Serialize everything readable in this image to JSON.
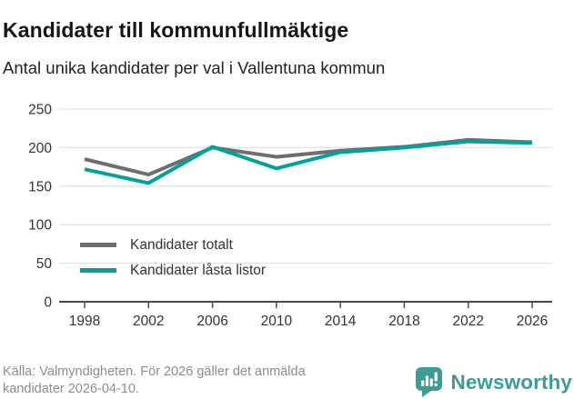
{
  "header": {
    "title": "Kandidater till kommunfullmäktige",
    "subtitle": "Antal unika kandidater per val i Vallentuna kommun"
  },
  "legend": [
    {
      "label": "Kandidater totalt",
      "color": "#6e6e6e"
    },
    {
      "label": "Kandidater låsta listor",
      "color": "#00a29a"
    }
  ],
  "footer": {
    "source": "Källa: Valmyndigheten. För 2026 gäller det anmälda kandidater 2026-04-10.",
    "brand": "Newsworthy",
    "brand_color": "#3d9c96"
  },
  "colors": {
    "grid": "#e3e3e3",
    "axis": "#4a4a4a",
    "tick_label": "#333333",
    "footer_text": "#8d8d8d"
  },
  "chart_data": {
    "type": "line",
    "title": "Kandidater till kommunfullmäktige",
    "subtitle": "Antal unika kandidater per val i Vallentuna kommun",
    "categories": [
      1998,
      2002,
      2006,
      2010,
      2014,
      2018,
      2022,
      2026
    ],
    "series": [
      {
        "name": "Kandidater totalt",
        "color": "#6e6e6e",
        "values": [
          185,
          165,
          200,
          188,
          196,
          201,
          210,
          207
        ]
      },
      {
        "name": "Kandidater låsta listor",
        "color": "#00a29a",
        "values": [
          172,
          154,
          201,
          173,
          194,
          200,
          208,
          206
        ]
      }
    ],
    "xlabel": "",
    "ylabel": "",
    "ylim": [
      0,
      250
    ],
    "yticks": [
      0,
      50,
      100,
      150,
      200,
      250
    ],
    "grid": "horizontal",
    "legend_position": "inside-left-middle"
  }
}
